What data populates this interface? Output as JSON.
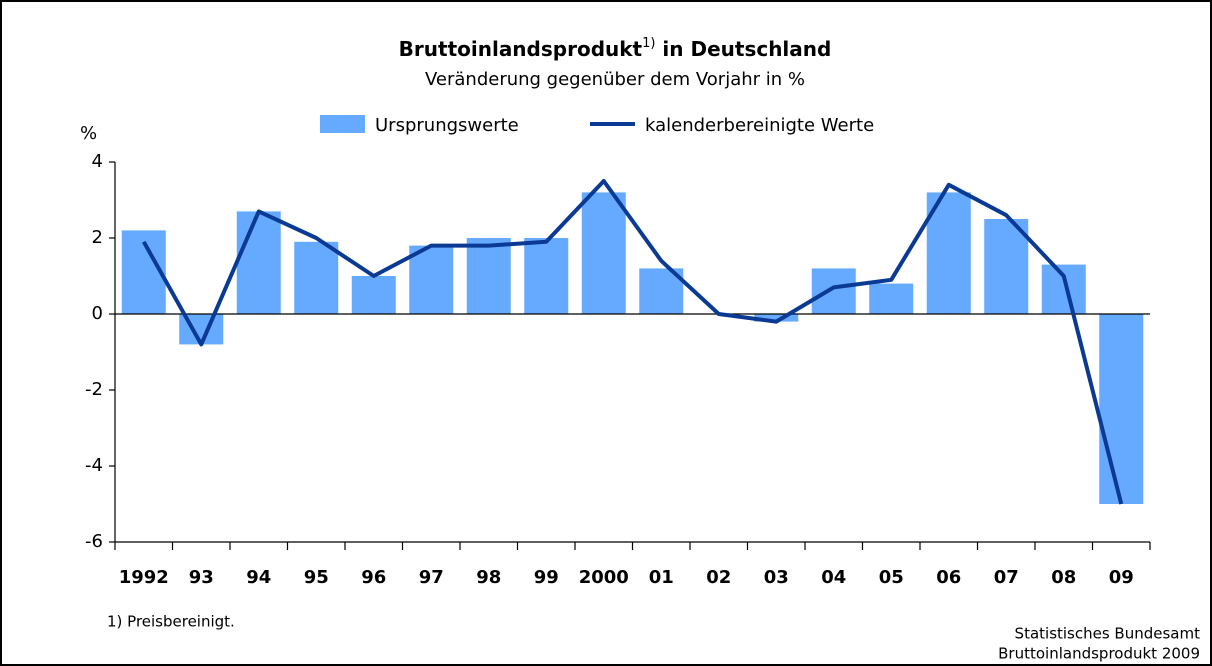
{
  "chart_data": {
    "type": "bar",
    "title": "Bruttoinlandsprodukt",
    "title_note": "1)",
    "title_suffix": " in Deutschland",
    "subtitle": "Veränderung gegenüber dem Vorjahr in %",
    "y_label": "%",
    "categories": [
      "1992",
      "93",
      "94",
      "95",
      "96",
      "97",
      "98",
      "99",
      "2000",
      "01",
      "02",
      "03",
      "04",
      "05",
      "06",
      "07",
      "08",
      "09"
    ],
    "series": [
      {
        "name": "Ursprungswerte",
        "type": "bar",
        "color": "#66aaff",
        "values": [
          2.2,
          -0.8,
          2.7,
          1.9,
          1.0,
          1.8,
          2.0,
          2.0,
          3.2,
          1.2,
          0.0,
          -0.2,
          1.2,
          0.8,
          3.2,
          2.5,
          1.3,
          -5.0
        ]
      },
      {
        "name": "kalenderbereinigte Werte",
        "type": "line",
        "color": "#0a3a94",
        "values": [
          1.9,
          -0.8,
          2.7,
          2.0,
          1.0,
          1.8,
          1.8,
          1.9,
          3.5,
          1.4,
          0.0,
          -0.2,
          0.7,
          0.9,
          3.4,
          2.6,
          1.0,
          -5.0
        ]
      }
    ],
    "ylim": [
      -6,
      4
    ],
    "yticks": [
      -6,
      -4,
      -2,
      0,
      2,
      4
    ],
    "footnote": "1) Preisbereinigt.",
    "source": [
      "Statistisches Bundesamt",
      "Bruttoinlandsprodukt 2009"
    ]
  }
}
